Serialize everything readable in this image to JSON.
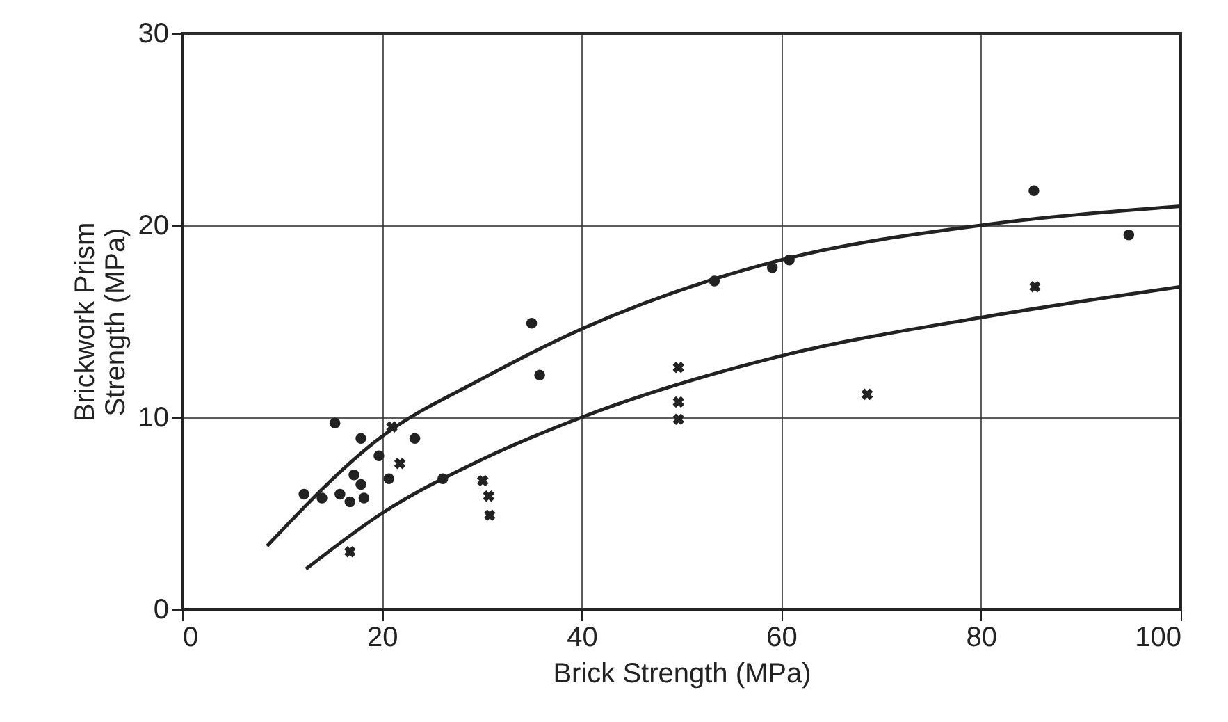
{
  "chart_data": {
    "type": "scatter",
    "xlabel": "Brick Strength (MPa)",
    "ylabel": "Brickwork Prism Strength (MPa)",
    "xlim": [
      0,
      100
    ],
    "ylim": [
      0,
      30
    ],
    "xticks": [
      0,
      20,
      40,
      60,
      80,
      100
    ],
    "yticks": [
      0,
      10,
      20,
      30
    ],
    "grid": true,
    "series": [
      {
        "marker": "circle",
        "color": "#222222",
        "x": [
          15.3,
          17.9,
          23.3,
          19.7,
          20.7,
          17.2,
          17.9,
          12.2,
          14.0,
          15.8,
          16.8,
          18.2,
          26.1,
          35.0,
          35.8,
          53.3,
          59.1,
          60.8,
          85.3,
          94.8
        ],
        "values": [
          9.7,
          8.9,
          8.9,
          8.0,
          6.8,
          7.0,
          6.5,
          6.0,
          5.8,
          6.0,
          5.6,
          5.8,
          6.8,
          14.9,
          12.2,
          17.1,
          17.8,
          18.2,
          21.8,
          19.5
        ]
      },
      {
        "marker": "cross",
        "color": "#222222",
        "x": [
          21.0,
          21.8,
          30.1,
          30.7,
          30.8,
          16.8,
          49.7,
          49.7,
          49.7,
          68.6,
          85.4
        ],
        "values": [
          9.5,
          7.6,
          6.7,
          5.9,
          4.9,
          3.0,
          12.6,
          10.8,
          9.9,
          11.2,
          16.8
        ]
      },
      {
        "type": "line",
        "marker": "none",
        "color": "#222222",
        "x": [
          8.5,
          20,
          30,
          40,
          60,
          80,
          100
        ],
        "values": [
          3.3,
          9.0,
          12.0,
          14.6,
          18.2,
          20.0,
          21.0
        ]
      },
      {
        "type": "line",
        "marker": "none",
        "color": "#222222",
        "x": [
          12.4,
          20,
          30,
          40,
          60,
          80,
          100
        ],
        "values": [
          2.1,
          5.0,
          7.8,
          10.0,
          13.2,
          15.2,
          16.8
        ]
      }
    ]
  }
}
